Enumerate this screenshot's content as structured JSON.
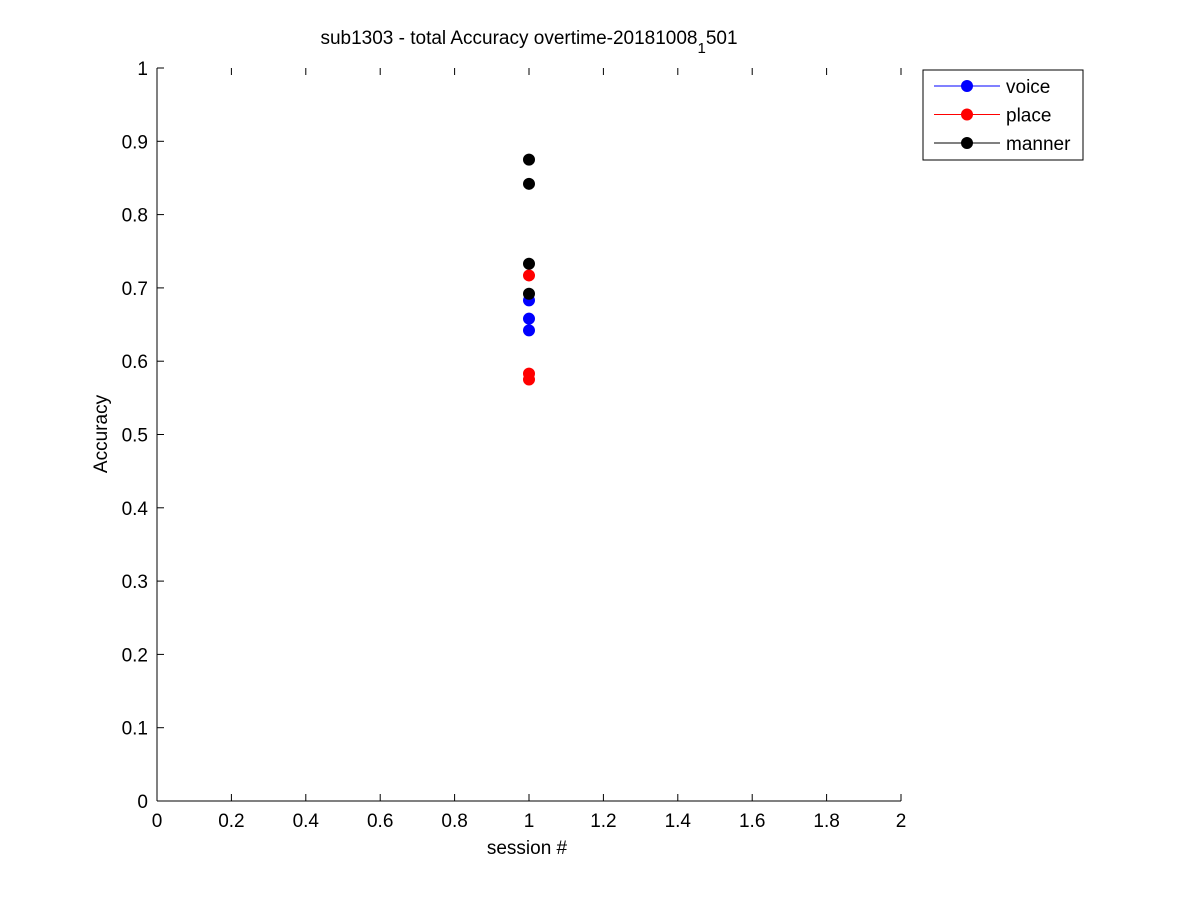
{
  "chart_data": {
    "type": "scatter",
    "title_main": "sub1303 - total Accuracy overtime-20181008",
    "title_sub": "1",
    "title_tail": "501",
    "xlabel": "session #",
    "ylabel": "Accuracy",
    "xlim": [
      0,
      2
    ],
    "ylim": [
      0,
      1
    ],
    "xticks": [
      0,
      0.2,
      0.4,
      0.6,
      0.8,
      1,
      1.2,
      1.4,
      1.6,
      1.8,
      2
    ],
    "xtick_labels": [
      "0",
      "0.2",
      "0.4",
      "0.6",
      "0.8",
      "1",
      "1.2",
      "1.4",
      "1.6",
      "1.8",
      "2"
    ],
    "yticks": [
      0,
      0.1,
      0.2,
      0.3,
      0.4,
      0.5,
      0.6,
      0.7,
      0.8,
      0.9,
      1
    ],
    "ytick_labels": [
      "0",
      "0.1",
      "0.2",
      "0.3",
      "0.4",
      "0.5",
      "0.6",
      "0.7",
      "0.8",
      "0.9",
      "1"
    ],
    "grid": false,
    "legend_position": "top-right",
    "series": [
      {
        "name": "voice",
        "color": "#0000ff",
        "x": [
          1,
          1,
          1
        ],
        "y": [
          0.683,
          0.658,
          0.642
        ]
      },
      {
        "name": "place",
        "color": "#ff0000",
        "x": [
          1,
          1,
          1
        ],
        "y": [
          0.717,
          0.583,
          0.575
        ]
      },
      {
        "name": "manner",
        "color": "#000000",
        "x": [
          1,
          1,
          1,
          1
        ],
        "y": [
          0.875,
          0.842,
          0.733,
          0.692
        ]
      }
    ]
  }
}
